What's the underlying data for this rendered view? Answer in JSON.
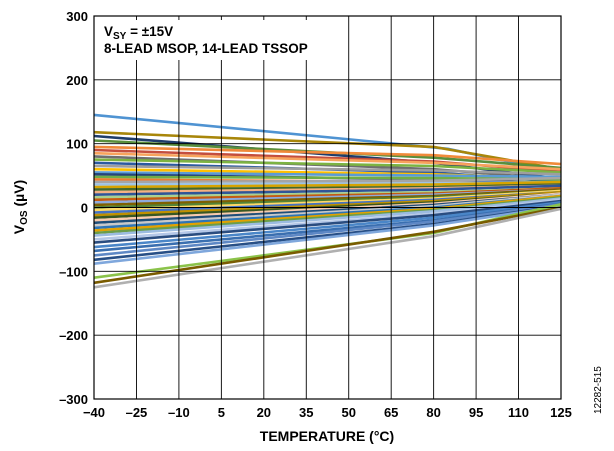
{
  "chart_data": {
    "type": "line",
    "xlabel": "TEMPERATURE (°C)",
    "ylabel_main": "V",
    "ylabel_sub": "OS",
    "ylabel_unit": " (µV)",
    "xlim": [
      -40,
      125
    ],
    "ylim": [
      -300,
      300
    ],
    "x_ticks": [
      "−40",
      "–25",
      "–10",
      "5",
      "20",
      "35",
      "50",
      "65",
      "80",
      "95",
      "110",
      "125"
    ],
    "y_ticks": [
      "300",
      "200",
      "100",
      "0",
      "–100",
      "–200",
      "–300"
    ],
    "x_tick_values": [
      -40,
      -25,
      -10,
      5,
      20,
      35,
      50,
      65,
      80,
      95,
      110,
      125
    ],
    "y_tick_values": [
      300,
      200,
      100,
      0,
      -100,
      -200,
      -300
    ],
    "grid": true,
    "annotation_line1_main": "V",
    "annotation_line1_sub": "SY",
    "annotation_line1_rest": " = ±15V",
    "annotation_line2": "8-LEAD MSOP, 14-LEAD TSSOP",
    "figure_id": "12282-515",
    "series": [
      {
        "color": "#4f93d2",
        "values": [
          [
            -40,
            145
          ],
          [
            85,
            92
          ],
          [
            125,
            55
          ]
        ]
      },
      {
        "color": "#a8860a",
        "values": [
          [
            -40,
            118
          ],
          [
            80,
            95
          ],
          [
            125,
            60
          ]
        ]
      },
      {
        "color": "#1f3d6b",
        "values": [
          [
            -40,
            112
          ],
          [
            80,
            70
          ],
          [
            125,
            45
          ]
        ]
      },
      {
        "color": "#5a8f3c",
        "values": [
          [
            -40,
            105
          ],
          [
            80,
            78
          ],
          [
            125,
            62
          ]
        ]
      },
      {
        "color": "#f08a3a",
        "values": [
          [
            -40,
            95
          ],
          [
            80,
            82
          ],
          [
            125,
            68
          ]
        ]
      },
      {
        "color": "#c44e3e",
        "values": [
          [
            -40,
            90
          ],
          [
            80,
            72
          ],
          [
            125,
            56
          ]
        ]
      },
      {
        "color": "#f7a35c",
        "values": [
          [
            -40,
            85
          ],
          [
            80,
            70
          ],
          [
            125,
            60
          ]
        ]
      },
      {
        "color": "#6f6f6f",
        "values": [
          [
            -40,
            80
          ],
          [
            80,
            60
          ],
          [
            125,
            44
          ]
        ]
      },
      {
        "color": "#7cb342",
        "values": [
          [
            -40,
            75
          ],
          [
            80,
            65
          ],
          [
            125,
            55
          ]
        ]
      },
      {
        "color": "#2c5aa0",
        "values": [
          [
            -40,
            70
          ],
          [
            80,
            55
          ],
          [
            125,
            40
          ]
        ]
      },
      {
        "color": "#9e9e9e",
        "values": [
          [
            -40,
            65
          ],
          [
            80,
            58
          ],
          [
            125,
            52
          ]
        ]
      },
      {
        "color": "#ffc000",
        "values": [
          [
            -40,
            60
          ],
          [
            80,
            52
          ],
          [
            125,
            45
          ]
        ]
      },
      {
        "color": "#5b9bd5",
        "values": [
          [
            -40,
            55
          ],
          [
            80,
            50
          ],
          [
            125,
            48
          ]
        ]
      },
      {
        "color": "#264478",
        "values": [
          [
            -40,
            52
          ],
          [
            80,
            44
          ],
          [
            125,
            38
          ]
        ]
      },
      {
        "color": "#70ad47",
        "values": [
          [
            -40,
            48
          ],
          [
            80,
            46
          ],
          [
            125,
            44
          ]
        ]
      },
      {
        "color": "#ed7d31",
        "values": [
          [
            -40,
            44
          ],
          [
            80,
            40
          ],
          [
            125,
            36
          ]
        ]
      },
      {
        "color": "#a5a5a5",
        "values": [
          [
            -40,
            40
          ],
          [
            80,
            42
          ],
          [
            125,
            46
          ]
        ]
      },
      {
        "color": "#9dc3e6",
        "values": [
          [
            -40,
            36
          ],
          [
            80,
            38
          ],
          [
            125,
            40
          ]
        ]
      },
      {
        "color": "#d6a300",
        "values": [
          [
            -40,
            32
          ],
          [
            80,
            36
          ],
          [
            125,
            40
          ]
        ]
      },
      {
        "color": "#43682b",
        "values": [
          [
            -40,
            28
          ],
          [
            80,
            32
          ],
          [
            125,
            36
          ]
        ]
      },
      {
        "color": "#f4b183",
        "values": [
          [
            -40,
            24
          ],
          [
            80,
            30
          ],
          [
            125,
            34
          ]
        ]
      },
      {
        "color": "#2f5597",
        "values": [
          [
            -40,
            20
          ],
          [
            80,
            28
          ],
          [
            125,
            34
          ]
        ]
      },
      {
        "color": "#a9d18e",
        "values": [
          [
            -40,
            16
          ],
          [
            80,
            24
          ],
          [
            125,
            30
          ]
        ]
      },
      {
        "color": "#c55a11",
        "values": [
          [
            -40,
            12
          ],
          [
            80,
            22
          ],
          [
            125,
            30
          ]
        ]
      },
      {
        "color": "#8faadc",
        "values": [
          [
            -40,
            8
          ],
          [
            80,
            20
          ],
          [
            125,
            28
          ]
        ]
      },
      {
        "color": "#7f6000",
        "values": [
          [
            -40,
            4
          ],
          [
            80,
            18
          ],
          [
            125,
            28
          ]
        ]
      },
      {
        "color": "#548235",
        "values": [
          [
            -40,
            0
          ],
          [
            80,
            16
          ],
          [
            125,
            26
          ]
        ]
      },
      {
        "color": "#ffd966",
        "values": [
          [
            -40,
            -4
          ],
          [
            80,
            14
          ],
          [
            125,
            26
          ]
        ]
      },
      {
        "color": "#4472c4",
        "values": [
          [
            -40,
            -8
          ],
          [
            80,
            12
          ],
          [
            125,
            24
          ]
        ]
      },
      {
        "color": "#bf9000",
        "values": [
          [
            -40,
            -12
          ],
          [
            80,
            10
          ],
          [
            125,
            24
          ]
        ]
      },
      {
        "color": "#385723",
        "values": [
          [
            -40,
            -16
          ],
          [
            80,
            8
          ],
          [
            125,
            22
          ]
        ]
      },
      {
        "color": "#f8cbad",
        "values": [
          [
            -40,
            -20
          ],
          [
            80,
            6
          ],
          [
            125,
            22
          ]
        ]
      },
      {
        "color": "#1f4e79",
        "values": [
          [
            -40,
            -24
          ],
          [
            80,
            4
          ],
          [
            125,
            20
          ]
        ]
      },
      {
        "color": "#c9c9c9",
        "values": [
          [
            -40,
            -28
          ],
          [
            80,
            2
          ],
          [
            125,
            20
          ]
        ]
      },
      {
        "color": "#2e75b6",
        "values": [
          [
            -40,
            -32
          ],
          [
            80,
            0
          ],
          [
            125,
            18
          ]
        ]
      },
      {
        "color": "#e2a200",
        "values": [
          [
            -40,
            -36
          ],
          [
            80,
            -2
          ],
          [
            125,
            18
          ]
        ]
      },
      {
        "color": "#6a9d4b",
        "values": [
          [
            -40,
            -40
          ],
          [
            80,
            -4
          ],
          [
            125,
            16
          ]
        ]
      },
      {
        "color": "#9bbbe0",
        "values": [
          [
            -40,
            -44
          ],
          [
            80,
            -6
          ],
          [
            125,
            14
          ]
        ]
      },
      {
        "color": "#b4c7e7",
        "values": [
          [
            -40,
            -50
          ],
          [
            80,
            -10
          ],
          [
            125,
            12
          ]
        ]
      },
      {
        "color": "#2a4d80",
        "values": [
          [
            -40,
            -55
          ],
          [
            80,
            -12
          ],
          [
            125,
            10
          ]
        ]
      },
      {
        "color": "#4a86c8",
        "values": [
          [
            -40,
            -62
          ],
          [
            80,
            -16
          ],
          [
            125,
            8
          ]
        ]
      },
      {
        "color": "#3a6fb0",
        "values": [
          [
            -40,
            -68
          ],
          [
            80,
            -20
          ],
          [
            125,
            6
          ]
        ]
      },
      {
        "color": "#5e88c5",
        "values": [
          [
            -40,
            -75
          ],
          [
            80,
            -22
          ],
          [
            125,
            5
          ]
        ]
      },
      {
        "color": "#284f86",
        "values": [
          [
            -40,
            -82
          ],
          [
            80,
            -26
          ],
          [
            125,
            3
          ]
        ]
      },
      {
        "color": "#7fa7dc",
        "values": [
          [
            -40,
            -88
          ],
          [
            80,
            -28
          ],
          [
            125,
            2
          ]
        ]
      },
      {
        "color": "#8bc34a",
        "values": [
          [
            -40,
            -110
          ],
          [
            80,
            -40
          ],
          [
            125,
            5
          ]
        ]
      },
      {
        "color": "#7a5c00",
        "values": [
          [
            -40,
            -118
          ],
          [
            80,
            -38
          ],
          [
            125,
            0
          ]
        ]
      },
      {
        "color": "#b0b0b0",
        "values": [
          [
            -40,
            -125
          ],
          [
            80,
            -45
          ],
          [
            125,
            -2
          ]
        ]
      }
    ]
  }
}
